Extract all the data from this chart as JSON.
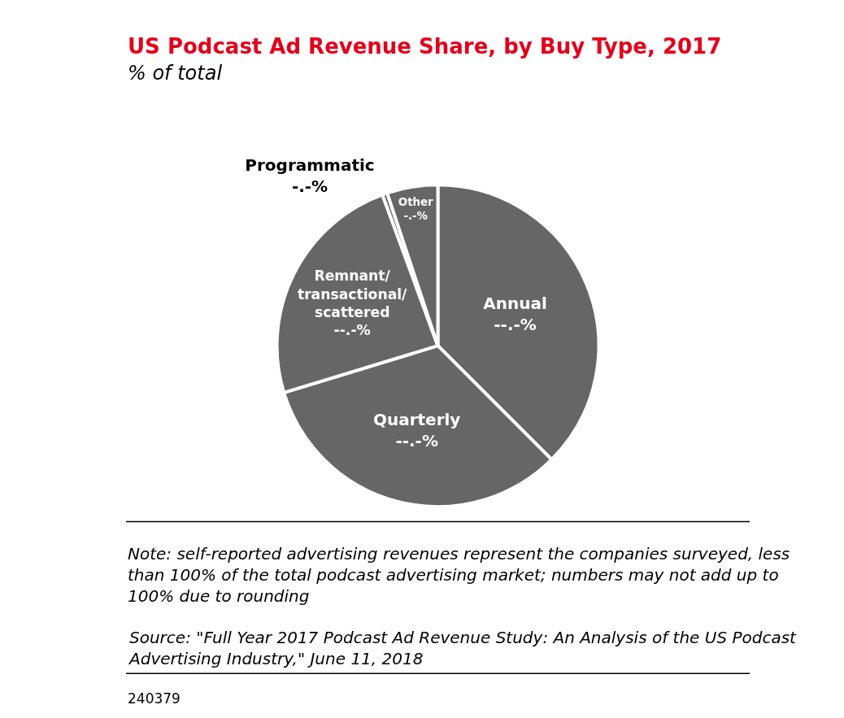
{
  "chart_data": {
    "type": "pie",
    "title": "US Podcast Ad Revenue Share, by Buy Type, 2017",
    "subtitle": "% of total",
    "categories": [
      "Annual",
      "Quarterly",
      "Remnant/transactional/scattered",
      "Programmatic",
      "Other"
    ],
    "values": [
      37.5,
      32.8,
      24.1,
      0.5,
      5.1
    ],
    "colors": [
      "#666666",
      "#666666",
      "#666666",
      "#666666",
      "#666666"
    ],
    "value_labels": [
      "--.-%",
      "--.-%",
      "--.-%",
      "-.-%",
      "-.-%"
    ],
    "legend": false,
    "annotations": [
      "Note: self-reported advertising revenues represent the companies surveyed, less than 100% of the total podcast advertising market; numbers may not add up to 100% due to rounding",
      "Source: \"Full Year 2017 Podcast Ad Revenue Study: An Analysis of the US Podcast Advertising Industry,\" June 11, 2018",
      "240379"
    ]
  }
}
